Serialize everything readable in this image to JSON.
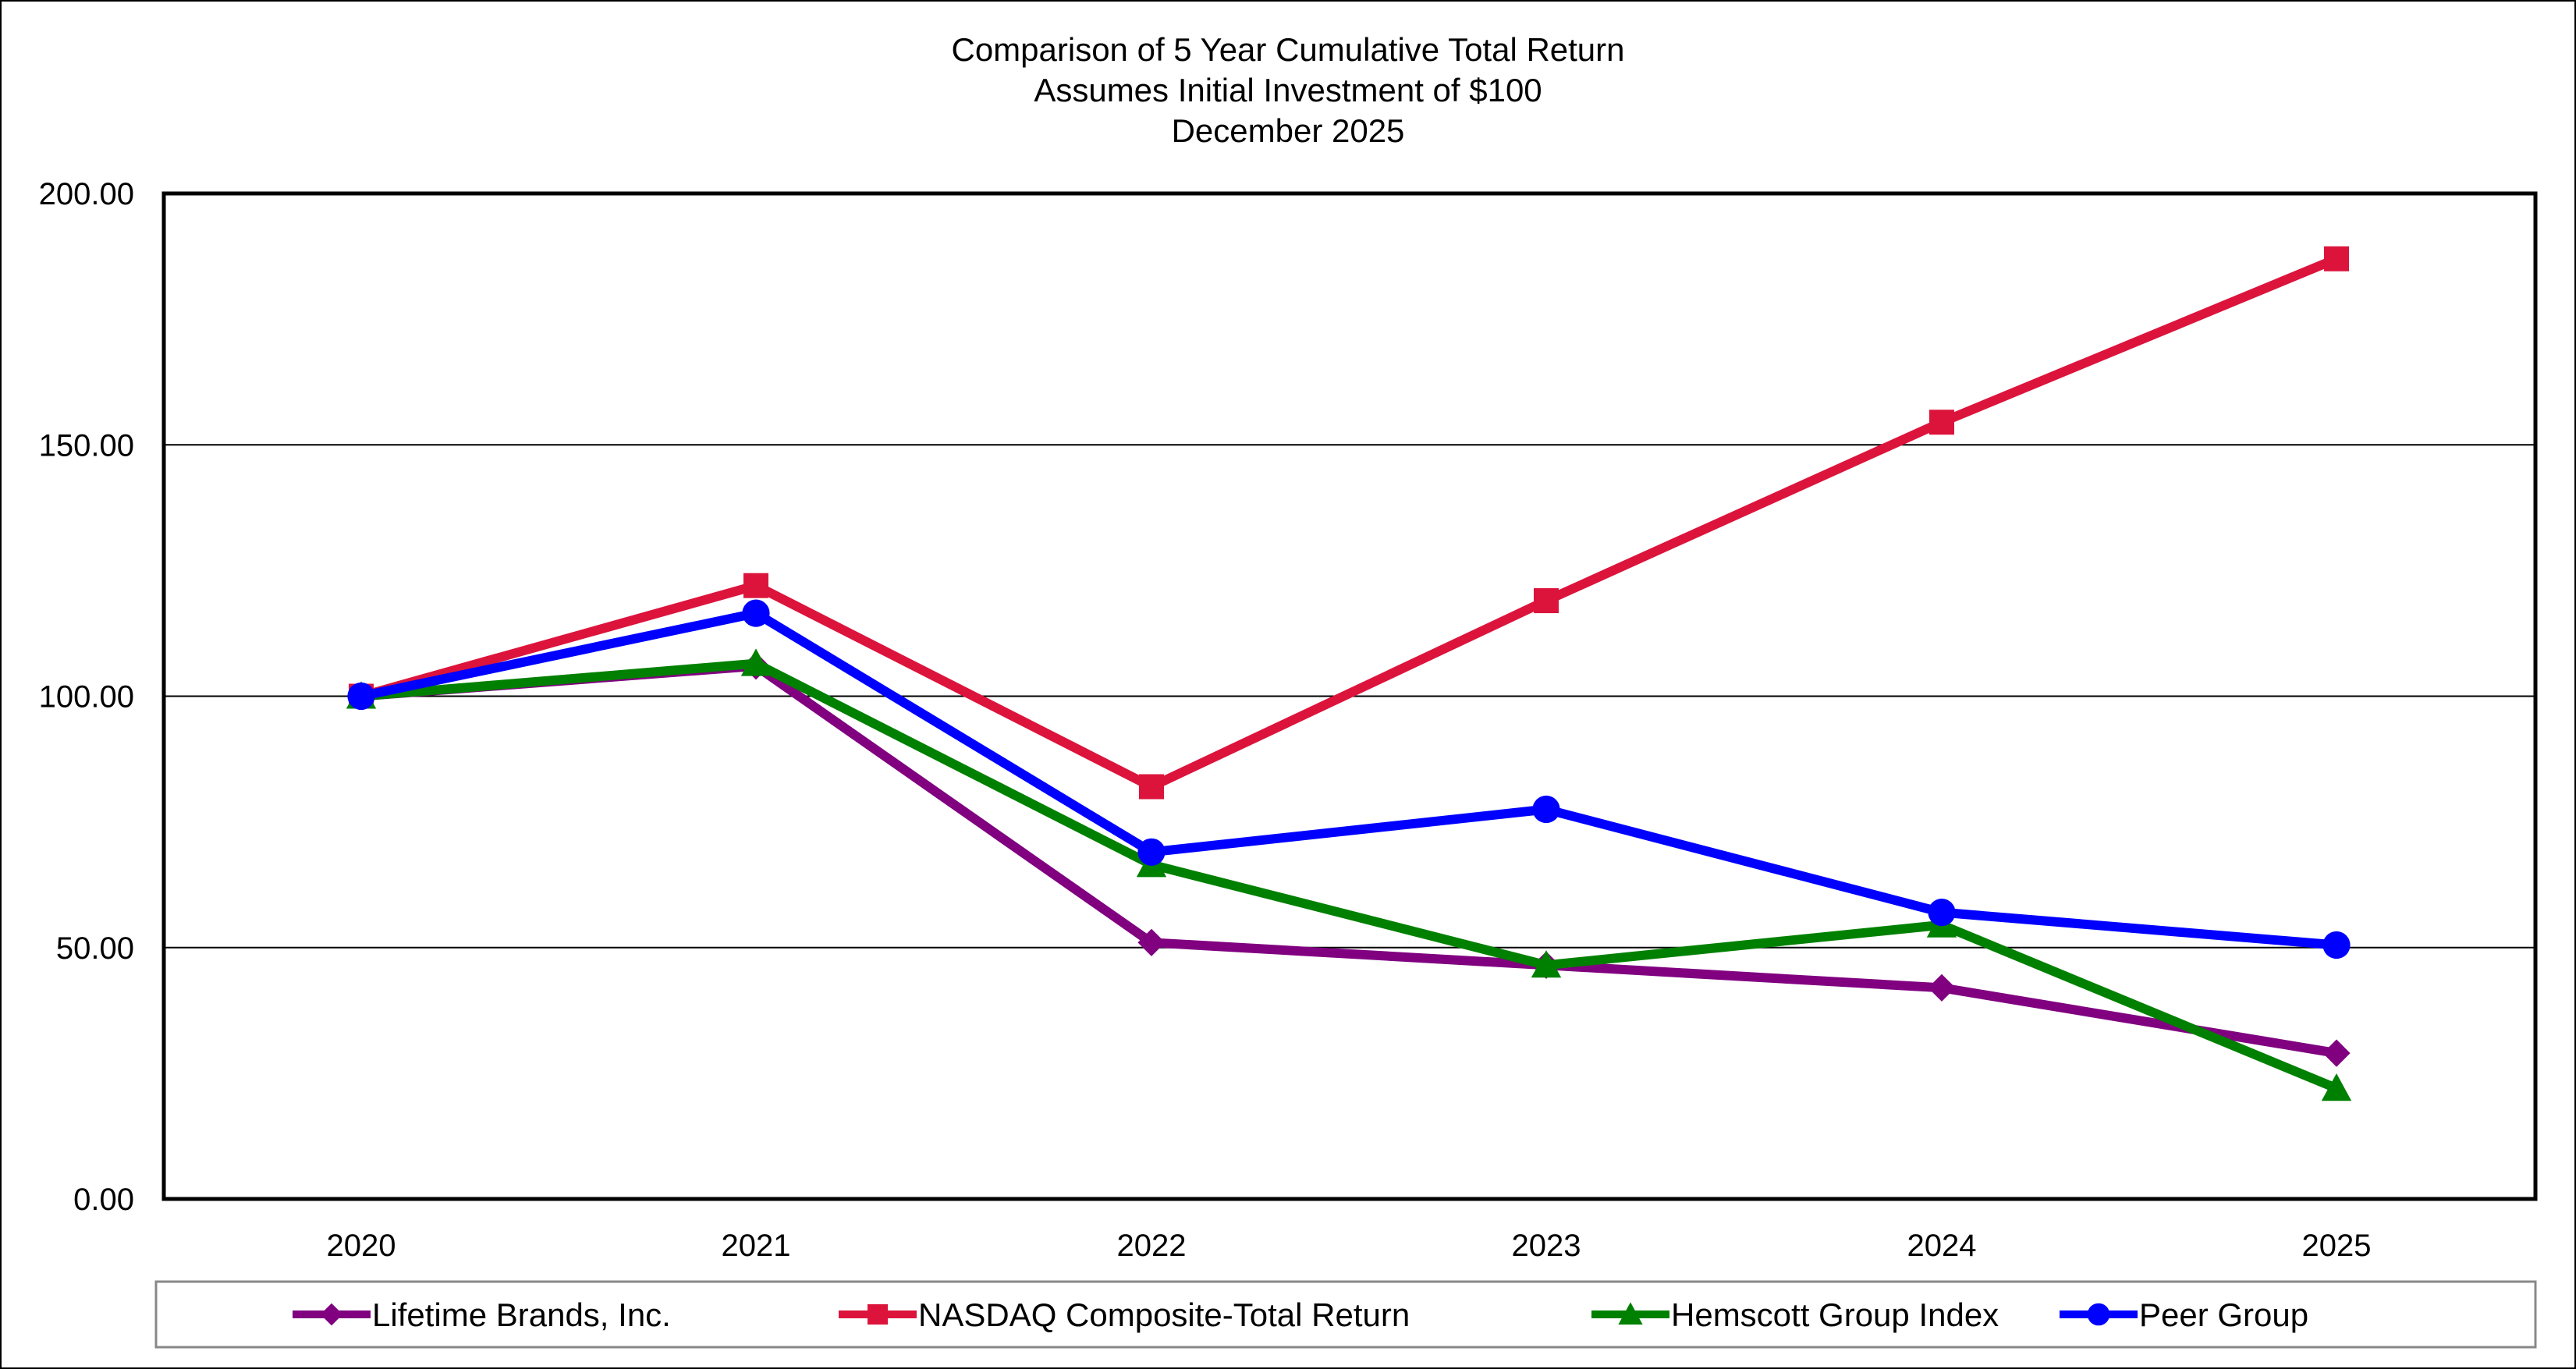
{
  "chart_data": {
    "type": "line",
    "title": [
      "Comparison of 5 Year Cumulative Total Return",
      "Assumes Initial Investment of $100",
      "December 2025"
    ],
    "xlabel": "",
    "ylabel": "",
    "categories": [
      "2020",
      "2021",
      "2022",
      "2023",
      "2024",
      "2025"
    ],
    "ylim": [
      0,
      200
    ],
    "yticks": [
      "0.00",
      "50.00",
      "100.00",
      "150.00",
      "200.00"
    ],
    "ytick_values": [
      0,
      50,
      100,
      150,
      200
    ],
    "grid": "horizontal",
    "legend_placement": "bottom",
    "series": [
      {
        "name": "Lifetime Brands, Inc.",
        "color": "#800080",
        "marker": "diamond",
        "values": [
          100,
          106,
          51,
          46.5,
          42,
          29
        ]
      },
      {
        "name": "NASDAQ Composite-Total Return",
        "color": "#DC143C",
        "marker": "square",
        "values": [
          100,
          122,
          82,
          119,
          154.5,
          187
        ]
      },
      {
        "name": "Hemscott Group Index",
        "color": "#008000",
        "marker": "triangle",
        "values": [
          100,
          106.5,
          66.5,
          46.5,
          54.5,
          22
        ]
      },
      {
        "name": "Peer Group",
        "color": "#0000FF",
        "marker": "circle",
        "values": [
          100,
          116.5,
          69,
          77.5,
          57,
          50.5
        ]
      }
    ]
  }
}
